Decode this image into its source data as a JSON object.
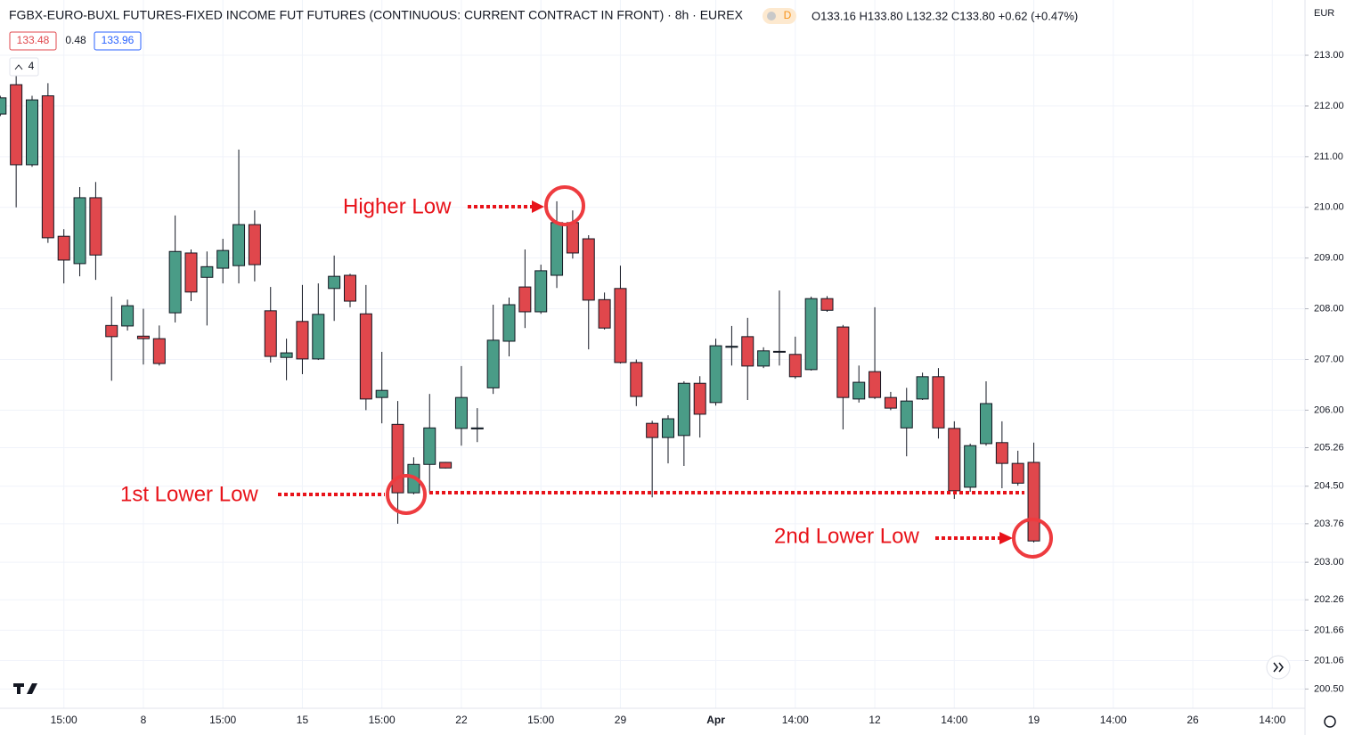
{
  "chart_data": {
    "type": "candlestick",
    "title": "FGBX-EURO-BUXL FUTURES-FIXED INCOME FUT FUTURES (CONTINUOUS: CURRENT CONTRACT IN FRONT) · 8h · EUREX",
    "interval_badge": "D",
    "ohlc_legend": "O133.16 H133.80 L132.32 C133.80 +0.62 (+0.47%)",
    "price_boxes": [
      "133.48",
      "0.48",
      "133.96"
    ],
    "indicator_count": "4",
    "currency": "EUR",
    "annotations": [
      "Higher Low",
      "1st Lower Low",
      "2nd Lower Low"
    ],
    "up_color": "#4a9c87",
    "down_color": "#e0474c",
    "grid": true,
    "ylim": [
      200.12,
      214.09
    ],
    "yticks": [
      {
        "value": 213,
        "label": "213.00"
      },
      {
        "value": 212,
        "label": "212.00"
      },
      {
        "value": 211,
        "label": "211.00"
      },
      {
        "value": 210,
        "label": "210.00"
      },
      {
        "value": 209,
        "label": "209.00"
      },
      {
        "value": 208,
        "label": "208.00"
      },
      {
        "value": 207,
        "label": "207.00"
      },
      {
        "value": 206,
        "label": "206.00"
      },
      {
        "value": 205.26,
        "label": "205.26"
      },
      {
        "value": 204.5,
        "label": "204.50"
      },
      {
        "value": 203.76,
        "label": "203.76"
      },
      {
        "value": 203,
        "label": "203.00"
      },
      {
        "value": 202.26,
        "label": "202.26"
      },
      {
        "value": 201.66,
        "label": "201.66"
      },
      {
        "value": 201.06,
        "label": "201.06"
      },
      {
        "value": 200.5,
        "label": "200.50"
      }
    ],
    "categories": [
      null,
      null,
      null,
      null,
      "15:00",
      null,
      null,
      null,
      null,
      "8",
      null,
      null,
      null,
      null,
      "15:00",
      null,
      null,
      null,
      null,
      "15",
      null,
      null,
      null,
      null,
      "15:00",
      null,
      null,
      null,
      null,
      "22",
      null,
      null,
      null,
      null,
      "15:00",
      null,
      null,
      null,
      null,
      "29",
      null,
      null,
      null,
      null,
      null,
      "Apr",
      null,
      null,
      null,
      null,
      "14:00",
      null,
      null,
      null,
      null,
      "12",
      null,
      null,
      null,
      null,
      "14:00",
      null,
      null,
      null,
      null,
      "19",
      null,
      null,
      null,
      null,
      "14:00",
      null,
      null,
      null,
      null,
      "26",
      null,
      null,
      null,
      null,
      "14:00",
      null
    ],
    "open": [
      211.84,
      212.42,
      210.84,
      212.2,
      209.43,
      208.89,
      210.19,
      207.67,
      207.66,
      207.46,
      207.41,
      207.92,
      209.1,
      208.62,
      208.8,
      208.85,
      209.66,
      207.96,
      207.04,
      207.75,
      207.01,
      208.4,
      208.66,
      207.9,
      206.25,
      205.72,
      204.37,
      204.93,
      204.97,
      205.64,
      205.63,
      206.44,
      207.36,
      208.43,
      207.94,
      208.66,
      209.7,
      209.38,
      208.18,
      208.4,
      206.94,
      205.74,
      205.46,
      205.5,
      206.53,
      206.15,
      207.24,
      207.45,
      206.87,
      207.15,
      207.1,
      206.8,
      208.2,
      207.64,
      206.22,
      206.76,
      206.25,
      205.65,
      206.22,
      206.66,
      205.64,
      204.48,
      205.34,
      205.36,
      204.95,
      204.97,
      null,
      null,
      null,
      null,
      null,
      null,
      null,
      null,
      null,
      null,
      null,
      null,
      null,
      null,
      null,
      null
    ],
    "high": [
      212.2,
      212.6,
      212.2,
      212.45,
      209.57,
      210.4,
      210.5,
      208.24,
      208.18,
      208.0,
      207.67,
      209.84,
      209.17,
      209.13,
      209.38,
      211.14,
      209.94,
      208.43,
      207.41,
      208.47,
      208.5,
      209.05,
      208.69,
      208.47,
      207.15,
      206.18,
      205.07,
      206.32,
      204.98,
      206.87,
      206.04,
      208.08,
      208.22,
      209.17,
      208.87,
      210.12,
      209.94,
      209.45,
      208.32,
      208.85,
      207.0,
      205.79,
      205.9,
      206.57,
      206.67,
      207.41,
      207.66,
      207.82,
      207.24,
      208.36,
      207.45,
      208.24,
      208.25,
      207.68,
      206.88,
      208.03,
      206.36,
      206.44,
      206.74,
      206.83,
      205.78,
      205.34,
      206.57,
      205.78,
      205.2,
      205.36,
      null,
      null,
      null,
      null,
      null,
      null,
      null,
      null,
      null,
      null,
      null,
      null,
      null,
      null,
      null,
      null
    ],
    "low": [
      211.8,
      210.0,
      210.8,
      209.3,
      208.5,
      208.64,
      208.57,
      206.58,
      207.57,
      206.9,
      206.88,
      207.73,
      208.15,
      207.67,
      208.5,
      208.5,
      208.54,
      206.94,
      206.59,
      206.71,
      206.99,
      207.76,
      208.03,
      206.0,
      205.74,
      203.76,
      204.34,
      204.37,
      204.85,
      205.3,
      205.37,
      206.32,
      207.06,
      207.62,
      207.9,
      208.41,
      208.99,
      207.2,
      207.59,
      206.92,
      206.08,
      204.28,
      204.95,
      204.9,
      205.46,
      206.09,
      206.88,
      206.2,
      206.83,
      206.88,
      206.62,
      206.78,
      207.94,
      205.62,
      206.15,
      206.22,
      206.0,
      205.09,
      206.2,
      205.44,
      204.25,
      204.39,
      205.3,
      204.46,
      204.51,
      203.39,
      null,
      null,
      null,
      null,
      null,
      null,
      null,
      null,
      null,
      null,
      null,
      null,
      null,
      null,
      null,
      null
    ],
    "close": [
      212.16,
      210.84,
      212.12,
      209.4,
      208.96,
      210.19,
      209.06,
      207.45,
      208.06,
      207.41,
      206.92,
      209.13,
      208.33,
      208.83,
      209.15,
      209.66,
      208.87,
      207.06,
      207.13,
      207.01,
      207.89,
      208.64,
      208.15,
      206.22,
      206.39,
      204.37,
      204.93,
      205.65,
      204.86,
      206.25,
      205.65,
      207.38,
      208.08,
      207.94,
      208.75,
      209.7,
      209.1,
      208.17,
      207.62,
      206.94,
      206.27,
      205.46,
      205.83,
      206.53,
      205.92,
      207.27,
      207.26,
      206.87,
      207.17,
      207.16,
      206.66,
      208.2,
      207.97,
      206.25,
      206.55,
      206.25,
      206.04,
      206.18,
      206.66,
      205.65,
      204.41,
      205.3,
      206.13,
      204.95,
      204.56,
      203.42,
      null,
      null,
      null,
      null,
      null,
      null,
      null,
      null,
      null,
      null,
      null,
      null,
      null,
      null,
      null,
      null
    ]
  }
}
